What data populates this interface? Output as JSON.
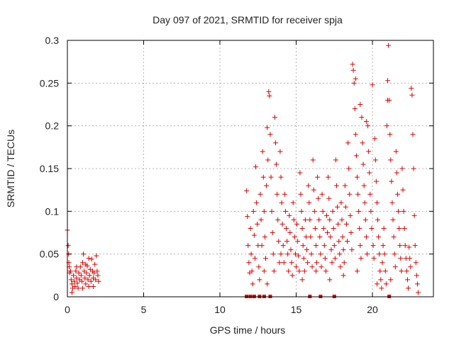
{
  "chart_data": {
    "type": "scatter",
    "title": "Day 097 of 2021, SRMTID for receiver spja",
    "xlabel": "GPS time / hours",
    "ylabel": "SRMTID / TECUs",
    "xlim": [
      0,
      24
    ],
    "ylim": [
      0,
      0.3
    ],
    "x_ticks": [
      0,
      5,
      10,
      15,
      20
    ],
    "y_ticks": [
      0,
      0.05,
      0.1,
      0.15,
      0.2,
      0.25,
      0.3
    ],
    "x_tick_labels": [
      "0",
      "5",
      "10",
      "15",
      "20"
    ],
    "y_tick_labels": [
      "0",
      "0.05",
      "0.1",
      "0.15",
      "0.2",
      "0.25",
      "0.3"
    ],
    "grid": true,
    "marker": "+",
    "color": "#e00000",
    "series": [
      {
        "name": "SRMTID",
        "points": [
          [
            0.0,
            0.078
          ],
          [
            0.05,
            0.06
          ],
          [
            0.08,
            0.05
          ],
          [
            0.1,
            0.04
          ],
          [
            0.12,
            0.035
          ],
          [
            0.15,
            0.028
          ],
          [
            0.2,
            0.03
          ],
          [
            0.25,
            0.02
          ],
          [
            0.3,
            0.015
          ],
          [
            0.35,
            0.01
          ],
          [
            0.4,
            0.025
          ],
          [
            0.45,
            0.018
          ],
          [
            0.5,
            0.012
          ],
          [
            0.55,
            0.03
          ],
          [
            0.6,
            0.022
          ],
          [
            0.65,
            0.016
          ],
          [
            0.7,
            0.01
          ],
          [
            0.75,
            0.028
          ],
          [
            0.8,
            0.02
          ],
          [
            0.85,
            0.035
          ],
          [
            0.9,
            0.025
          ],
          [
            0.95,
            0.018
          ],
          [
            1.0,
            0.04
          ],
          [
            1.05,
            0.05
          ],
          [
            1.1,
            0.03
          ],
          [
            1.15,
            0.022
          ],
          [
            1.2,
            0.015
          ],
          [
            1.25,
            0.028
          ],
          [
            1.3,
            0.036
          ],
          [
            1.35,
            0.02
          ],
          [
            1.4,
            0.012
          ],
          [
            1.45,
            0.025
          ],
          [
            1.5,
            0.032
          ],
          [
            1.55,
            0.018
          ],
          [
            1.6,
            0.044
          ],
          [
            1.65,
            0.03
          ],
          [
            1.7,
            0.022
          ],
          [
            1.75,
            0.028
          ],
          [
            1.8,
            0.038
          ],
          [
            1.85,
            0.02
          ],
          [
            1.9,
            0.048
          ],
          [
            1.95,
            0.03
          ],
          [
            2.0,
            0.025
          ],
          [
            2.05,
            0.018
          ],
          [
            0.3,
            0.005
          ],
          [
            0.6,
            0.035
          ],
          [
            1.0,
            0.01
          ],
          [
            1.4,
            0.045
          ],
          [
            1.7,
            0.012
          ],
          [
            1.2,
            0.038
          ],
          [
            11.75,
            0.124
          ],
          [
            11.8,
            0.094
          ],
          [
            11.85,
            0.06
          ],
          [
            11.9,
            0.04
          ],
          [
            11.95,
            0.028
          ],
          [
            12.0,
            0.08
          ],
          [
            12.05,
            0.05
          ],
          [
            12.1,
            0.03
          ],
          [
            12.15,
            0.015
          ],
          [
            12.2,
            0.1
          ],
          [
            12.25,
            0.072
          ],
          [
            12.3,
            0.045
          ],
          [
            12.35,
            0.152
          ],
          [
            12.4,
            0.11
          ],
          [
            12.45,
            0.085
          ],
          [
            12.5,
            0.06
          ],
          [
            12.55,
            0.035
          ],
          [
            12.6,
            0.02
          ],
          [
            12.65,
            0.12
          ],
          [
            12.7,
            0.09
          ],
          [
            12.75,
            0.06
          ],
          [
            12.8,
            0.17
          ],
          [
            12.85,
            0.14
          ],
          [
            12.9,
            0.1
          ],
          [
            12.95,
            0.07
          ],
          [
            13.0,
            0.045
          ],
          [
            13.05,
            0.13
          ],
          [
            13.1,
            0.198
          ],
          [
            13.15,
            0.16
          ],
          [
            13.2,
            0.24
          ],
          [
            13.25,
            0.235
          ],
          [
            13.3,
            0.19
          ],
          [
            13.35,
            0.14
          ],
          [
            13.4,
            0.1
          ],
          [
            13.45,
            0.075
          ],
          [
            13.5,
            0.05
          ],
          [
            13.55,
            0.03
          ],
          [
            13.6,
            0.21
          ],
          [
            13.65,
            0.18
          ],
          [
            13.7,
            0.155
          ],
          [
            13.75,
            0.12
          ],
          [
            13.8,
            0.09
          ],
          [
            13.85,
            0.065
          ],
          [
            13.9,
            0.04
          ],
          [
            13.95,
            0.17
          ],
          [
            14.0,
            0.14
          ],
          [
            14.05,
            0.11
          ],
          [
            14.1,
            0.085
          ],
          [
            14.15,
            0.06
          ],
          [
            14.2,
            0.04
          ],
          [
            14.25,
            0.12
          ],
          [
            14.3,
            0.1
          ],
          [
            14.35,
            0.08
          ],
          [
            14.4,
            0.065
          ],
          [
            14.45,
            0.05
          ],
          [
            14.5,
            0.03
          ],
          [
            14.55,
            0.095
          ],
          [
            14.6,
            0.075
          ],
          [
            14.65,
            0.055
          ],
          [
            14.7,
            0.04
          ],
          [
            14.75,
            0.025
          ],
          [
            14.8,
            0.11
          ],
          [
            14.85,
            0.09
          ],
          [
            14.9,
            0.07
          ],
          [
            14.95,
            0.05
          ],
          [
            15.0,
            0.035
          ],
          [
            15.05,
            0.085
          ],
          [
            15.1,
            0.065
          ],
          [
            15.15,
            0.048
          ],
          [
            15.2,
            0.03
          ],
          [
            15.25,
            0.145
          ],
          [
            15.3,
            0.12
          ],
          [
            15.35,
            0.1
          ],
          [
            15.4,
            0.08
          ],
          [
            15.45,
            0.06
          ],
          [
            15.5,
            0.045
          ],
          [
            15.55,
            0.03
          ],
          [
            15.6,
            0.09
          ],
          [
            15.65,
            0.07
          ],
          [
            15.7,
            0.055
          ],
          [
            15.75,
            0.04
          ],
          [
            15.8,
            0.13
          ],
          [
            15.85,
            0.11
          ],
          [
            15.9,
            0.09
          ],
          [
            15.95,
            0.07
          ],
          [
            16.0,
            0.05
          ],
          [
            16.05,
            0.035
          ],
          [
            16.1,
            0.16
          ],
          [
            16.15,
            0.125
          ],
          [
            16.2,
            0.1
          ],
          [
            16.25,
            0.08
          ],
          [
            16.3,
            0.06
          ],
          [
            16.35,
            0.04
          ],
          [
            16.4,
            0.14
          ],
          [
            16.45,
            0.115
          ],
          [
            16.5,
            0.09
          ],
          [
            16.55,
            0.07
          ],
          [
            16.6,
            0.05
          ],
          [
            16.65,
            0.035
          ],
          [
            16.7,
            0.12
          ],
          [
            16.75,
            0.1
          ],
          [
            16.8,
            0.08
          ],
          [
            16.85,
            0.06
          ],
          [
            16.9,
            0.045
          ],
          [
            16.95,
            0.03
          ],
          [
            17.0,
            0.095
          ],
          [
            17.05,
            0.075
          ],
          [
            17.1,
            0.14
          ],
          [
            17.15,
            0.115
          ],
          [
            17.2,
            0.09
          ],
          [
            17.25,
            0.07
          ],
          [
            17.3,
            0.055
          ],
          [
            17.35,
            0.04
          ],
          [
            17.4,
            0.1
          ],
          [
            17.45,
            0.08
          ],
          [
            17.5,
            0.06
          ],
          [
            17.55,
            0.045
          ],
          [
            17.6,
            0.16
          ],
          [
            17.65,
            0.13
          ],
          [
            17.7,
            0.105
          ],
          [
            17.75,
            0.085
          ],
          [
            17.8,
            0.065
          ],
          [
            17.85,
            0.05
          ],
          [
            17.9,
            0.035
          ],
          [
            17.95,
            0.11
          ],
          [
            18.0,
            0.09
          ],
          [
            18.05,
            0.07
          ],
          [
            18.1,
            0.055
          ],
          [
            18.15,
            0.04
          ],
          [
            18.2,
            0.13
          ],
          [
            18.25,
            0.105
          ],
          [
            18.3,
            0.085
          ],
          [
            18.35,
            0.065
          ],
          [
            18.4,
            0.18
          ],
          [
            18.45,
            0.15
          ],
          [
            18.5,
            0.12
          ],
          [
            18.55,
            0.095
          ],
          [
            18.6,
            0.075
          ],
          [
            18.65,
            0.055
          ],
          [
            18.7,
            0.272
          ],
          [
            18.75,
            0.265
          ],
          [
            18.8,
            0.25
          ],
          [
            18.85,
            0.22
          ],
          [
            18.9,
            0.19
          ],
          [
            18.95,
            0.165
          ],
          [
            19.0,
            0.14
          ],
          [
            19.05,
            0.12
          ],
          [
            19.1,
            0.1
          ],
          [
            19.15,
            0.08
          ],
          [
            19.2,
            0.06
          ],
          [
            19.25,
            0.045
          ],
          [
            19.3,
            0.21
          ],
          [
            19.35,
            0.18
          ],
          [
            19.4,
            0.155
          ],
          [
            19.45,
            0.13
          ],
          [
            19.5,
            0.11
          ],
          [
            19.55,
            0.09
          ],
          [
            19.6,
            0.07
          ],
          [
            19.65,
            0.05
          ],
          [
            19.7,
            0.2
          ],
          [
            19.75,
            0.17
          ],
          [
            19.8,
            0.145
          ],
          [
            19.85,
            0.12
          ],
          [
            19.9,
            0.1
          ],
          [
            19.95,
            0.08
          ],
          [
            20.0,
            0.248
          ],
          [
            20.05,
            0.06
          ],
          [
            20.1,
            0.045
          ],
          [
            20.15,
            0.185
          ],
          [
            20.2,
            0.16
          ],
          [
            20.25,
            0.135
          ],
          [
            20.3,
            0.11
          ],
          [
            20.35,
            0.09
          ],
          [
            20.4,
            0.07
          ],
          [
            20.45,
            0.05
          ],
          [
            20.5,
            0.03
          ],
          [
            20.55,
            0.02
          ],
          [
            20.6,
            0.01
          ],
          [
            20.65,
            0.04
          ],
          [
            20.7,
            0.06
          ],
          [
            20.75,
            0.08
          ],
          [
            20.8,
            0.05
          ],
          [
            20.85,
            0.03
          ],
          [
            20.9,
            0.015
          ],
          [
            20.95,
            0.2
          ],
          [
            21.0,
            0.253
          ],
          [
            21.05,
            0.294
          ],
          [
            21.1,
            0.23
          ],
          [
            21.15,
            0.19
          ],
          [
            21.2,
            0.16
          ],
          [
            21.25,
            0.135
          ],
          [
            21.3,
            0.11
          ],
          [
            21.35,
            0.09
          ],
          [
            21.4,
            0.07
          ],
          [
            21.45,
            0.05
          ],
          [
            21.5,
            0.035
          ],
          [
            21.55,
            0.17
          ],
          [
            21.6,
            0.145
          ],
          [
            21.65,
            0.12
          ],
          [
            21.7,
            0.1
          ],
          [
            21.75,
            0.08
          ],
          [
            21.8,
            0.06
          ],
          [
            21.85,
            0.045
          ],
          [
            21.9,
            0.03
          ],
          [
            21.95,
            0.15
          ],
          [
            22.0,
            0.125
          ],
          [
            22.05,
            0.1
          ],
          [
            22.1,
            0.08
          ],
          [
            22.15,
            0.06
          ],
          [
            22.2,
            0.045
          ],
          [
            22.25,
            0.03
          ],
          [
            22.3,
            0.02
          ],
          [
            22.35,
            0.01
          ],
          [
            22.4,
            0.058
          ],
          [
            22.45,
            0.045
          ],
          [
            22.5,
            0.035
          ],
          [
            22.55,
            0.244
          ],
          [
            22.6,
            0.236
          ],
          [
            22.65,
            0.19
          ],
          [
            22.7,
            0.15
          ],
          [
            22.75,
            0.095
          ],
          [
            22.8,
            0.06
          ],
          [
            22.85,
            0.04
          ],
          [
            22.9,
            0.025
          ],
          [
            22.95,
            0.015
          ],
          [
            23.0,
            0.005
          ],
          [
            18.9,
            0.255
          ],
          [
            19.2,
            0.225
          ],
          [
            21.0,
            0.23
          ],
          [
            19.6,
            0.205
          ],
          [
            14.0,
            0.05
          ],
          [
            15.4,
            0.02
          ],
          [
            16.3,
            0.03
          ],
          [
            17.2,
            0.02
          ],
          [
            18.1,
            0.025
          ],
          [
            19.0,
            0.03
          ],
          [
            20.3,
            0.015
          ],
          [
            21.2,
            0.02
          ],
          [
            13.1,
            0.015
          ],
          [
            12.9,
            0.03
          ]
        ]
      }
    ],
    "baseline_markers_x": [
      11.75,
      12.0,
      12.25,
      12.6,
      12.9,
      13.3,
      15.9,
      16.6,
      17.5,
      21.1
    ]
  }
}
